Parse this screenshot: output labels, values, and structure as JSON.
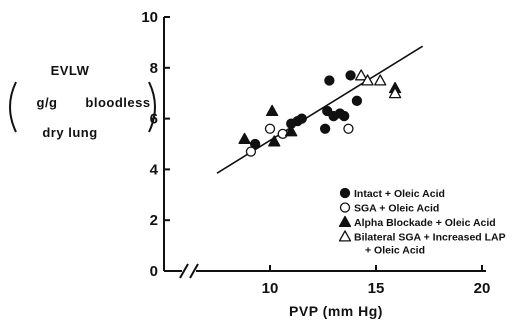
{
  "chart_data": {
    "type": "scatter",
    "xlabel": "PVP (mm Hg)",
    "ylabel_lines": [
      "EVLW",
      "g/g",
      "bloodless",
      "dry lung"
    ],
    "xlim": [
      0,
      20
    ],
    "ylim": [
      0,
      10
    ],
    "x_axis_break": true,
    "x_ticks": [
      {
        "value": 0,
        "label": "0"
      },
      {
        "value": 10,
        "label": "10"
      },
      {
        "value": 15,
        "label": "15"
      },
      {
        "value": 20,
        "label": "20"
      }
    ],
    "y_ticks": [
      {
        "value": 0,
        "label": "0"
      },
      {
        "value": 2,
        "label": "2"
      },
      {
        "value": 4,
        "label": "4"
      },
      {
        "value": 6,
        "label": "6"
      },
      {
        "value": 8,
        "label": "8"
      },
      {
        "value": 10,
        "label": "10"
      }
    ],
    "regression_line": {
      "x": [
        7.5,
        17.2
      ],
      "y": [
        3.85,
        8.85
      ]
    },
    "legend_position": "bottom-right",
    "series": [
      {
        "name": "Intact + Oleic Acid",
        "marker": "filled-circle",
        "points": [
          [
            9.3,
            5.0
          ],
          [
            11.0,
            5.8
          ],
          [
            11.3,
            5.9
          ],
          [
            11.5,
            6.0
          ],
          [
            12.6,
            5.6
          ],
          [
            12.7,
            6.3
          ],
          [
            12.8,
            7.5
          ],
          [
            13.0,
            6.1
          ],
          [
            13.3,
            6.2
          ],
          [
            13.5,
            6.1
          ],
          [
            13.8,
            7.7
          ],
          [
            14.1,
            6.7
          ]
        ]
      },
      {
        "name": "SGA + Oleic Acid",
        "marker": "open-circle",
        "points": [
          [
            9.1,
            4.7
          ],
          [
            10.0,
            5.6
          ],
          [
            10.6,
            5.4
          ],
          [
            13.7,
            5.6
          ]
        ]
      },
      {
        "name": "Alpha Blockade + Oleic Acid",
        "marker": "filled-triangle",
        "points": [
          [
            8.8,
            5.2
          ],
          [
            10.1,
            6.3
          ],
          [
            10.2,
            5.1
          ],
          [
            11.0,
            5.5
          ],
          [
            15.9,
            7.2
          ]
        ]
      },
      {
        "name": "Bilateral SGA + Increased LAP",
        "name_line2": "+ Oleic Acid",
        "marker": "open-triangle",
        "points": [
          [
            14.3,
            7.7
          ],
          [
            14.6,
            7.5
          ],
          [
            15.2,
            7.5
          ],
          [
            15.9,
            7.0
          ]
        ]
      }
    ]
  }
}
